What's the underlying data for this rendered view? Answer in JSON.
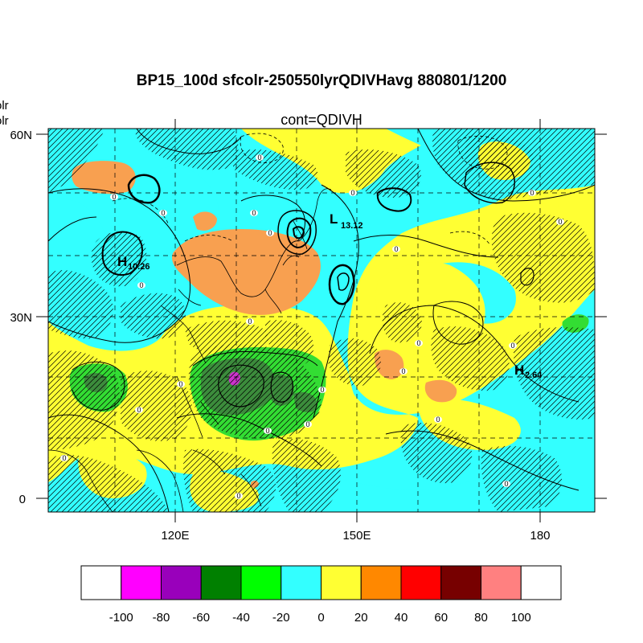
{
  "title": "BP15_100d sfcolr-250550lyrQDIVHavg  880801/1200",
  "subtitle": "cont=QDIVH",
  "left_clipped_labels": [
    "olr",
    "olr"
  ],
  "lat_ticks": [
    "60N",
    "30N",
    "0"
  ],
  "lon_ticks": [
    "120E",
    "150E",
    "180"
  ],
  "colorbar": {
    "labels": [
      "-100",
      "-80",
      "-60",
      "-40",
      "-20",
      "0",
      "20",
      "40",
      "60",
      "80",
      "100"
    ],
    "colors": [
      "#ffffff",
      "#ff00ff",
      "#9900bb",
      "#008000",
      "#00ff00",
      "#33ffff",
      "#ffff33",
      "#ff8800",
      "#ff0000",
      "#770000",
      "#ff8080",
      "#ffffff"
    ]
  },
  "centers": [
    {
      "letter": "H",
      "value": "10.26"
    },
    {
      "letter": "L",
      "value": "13.12"
    },
    {
      "letter": "H",
      "value": "2.64"
    }
  ],
  "zero_label": "0",
  "colors": {
    "cyan": "#33ffff",
    "yellow": "#ffff33",
    "orange": "#f8a050",
    "green": "#33dd33",
    "darkgreen": "#3c8c3c",
    "magenta": "#cc33cc"
  }
}
